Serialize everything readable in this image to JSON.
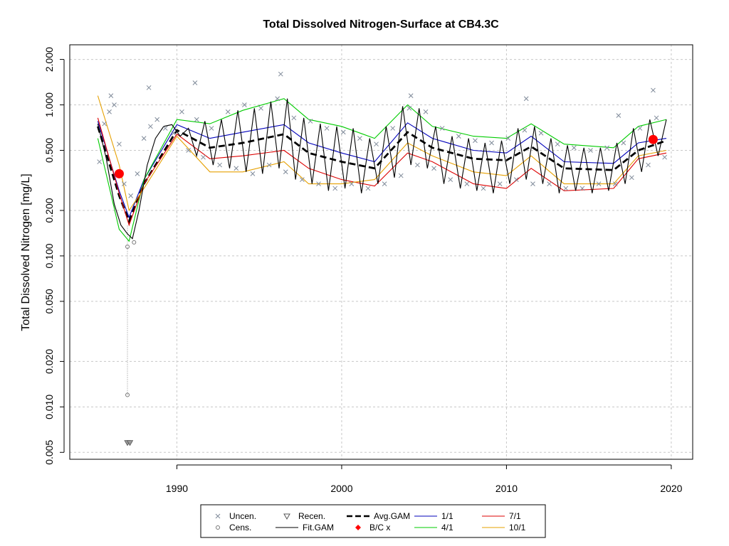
{
  "chart_data": {
    "type": "scatter",
    "title": "Total Dissolved Nitrogen-Surface at CB4.3C",
    "xlabel": "",
    "ylabel": "Total Dissolved Nitrogen [mg/L]",
    "y_scale": "log",
    "xlim": [
      1983.5,
      2021.3
    ],
    "ylim": [
      0.0045,
      2.5
    ],
    "x_ticks": [
      1990,
      2000,
      2010,
      2020
    ],
    "y_ticks": [
      0.005,
      0.01,
      0.02,
      0.05,
      0.1,
      0.2,
      0.5,
      1.0,
      2.0
    ],
    "y_tick_labels": [
      "0.005",
      "0.010",
      "0.020",
      "0.050",
      "0.100",
      "0.200",
      "0.500",
      "1.000",
      "2.000"
    ],
    "grid": true,
    "legend_position": "bottom",
    "legend": [
      {
        "label": "Uncen.",
        "symbol": "x",
        "color": "#7f8a99"
      },
      {
        "label": "Recen.",
        "symbol": "triangle-down",
        "color": "#555555"
      },
      {
        "label": "Avg.GAM",
        "symbol": "dashed-line",
        "color": "#000000"
      },
      {
        "label": "1/1",
        "symbol": "line",
        "color": "#0000bb"
      },
      {
        "label": "7/1",
        "symbol": "line",
        "color": "#dd0000"
      },
      {
        "label": "Cens.",
        "symbol": "circle-open",
        "color": "#777777"
      },
      {
        "label": "Fit.GAM",
        "symbol": "line",
        "color": "#000000"
      },
      {
        "label": "B/C x",
        "symbol": "diamond",
        "color": "#ff0000"
      },
      {
        "label": "4/1",
        "symbol": "line",
        "color": "#00cc00"
      },
      {
        "label": "10/1",
        "symbol": "line",
        "color": "#e6a000"
      }
    ],
    "series": [
      {
        "name": "Avg.GAM",
        "color": "#000000",
        "style": "dashed",
        "x": [
          1985.2,
          1986.5,
          1987.1,
          1988.0,
          1990.0,
          1992.0,
          1994.0,
          1996.5,
          1998.0,
          2000.0,
          2002.0,
          2004.0,
          2005.5,
          2008.0,
          2010.0,
          2011.5,
          2013.5,
          2016.5,
          2018.0,
          2019.7
        ],
        "y": [
          0.72,
          0.25,
          0.17,
          0.3,
          0.68,
          0.52,
          0.56,
          0.64,
          0.48,
          0.42,
          0.38,
          0.66,
          0.52,
          0.44,
          0.43,
          0.53,
          0.38,
          0.37,
          0.5,
          0.58
        ]
      },
      {
        "name": "1/1",
        "color": "#0000bb",
        "style": "solid",
        "x": [
          1985.2,
          1986.5,
          1987.1,
          1988.0,
          1990.0,
          1992.0,
          1994.0,
          1996.5,
          1998.0,
          2000.0,
          2002.0,
          2004.0,
          2005.5,
          2008.0,
          2010.0,
          2011.5,
          2013.5,
          2016.5,
          2018.0,
          2019.7
        ],
        "y": [
          0.78,
          0.27,
          0.18,
          0.32,
          0.74,
          0.6,
          0.66,
          0.74,
          0.56,
          0.48,
          0.42,
          0.76,
          0.6,
          0.5,
          0.48,
          0.62,
          0.42,
          0.41,
          0.56,
          0.6
        ]
      },
      {
        "name": "4/1",
        "color": "#00cc00",
        "style": "solid",
        "x": [
          1985.2,
          1986.5,
          1987.1,
          1988.0,
          1990.0,
          1992.0,
          1994.0,
          1996.5,
          1998.0,
          2000.0,
          2002.0,
          2004.0,
          2005.5,
          2008.0,
          2010.0,
          2011.5,
          2013.5,
          2016.5,
          2018.0,
          2019.7
        ],
        "y": [
          0.6,
          0.15,
          0.125,
          0.32,
          0.8,
          0.75,
          0.92,
          1.1,
          0.8,
          0.72,
          0.6,
          1.0,
          0.72,
          0.62,
          0.6,
          0.75,
          0.55,
          0.52,
          0.72,
          0.8
        ]
      },
      {
        "name": "7/1",
        "color": "#dd0000",
        "style": "solid",
        "x": [
          1985.2,
          1986.5,
          1987.1,
          1988.0,
          1990.0,
          1992.0,
          1994.0,
          1996.5,
          1998.0,
          2000.0,
          2002.0,
          2004.0,
          2005.5,
          2008.0,
          2010.0,
          2011.5,
          2013.5,
          2016.5,
          2018.0,
          2019.7
        ],
        "y": [
          0.82,
          0.26,
          0.16,
          0.3,
          0.64,
          0.44,
          0.46,
          0.5,
          0.38,
          0.32,
          0.29,
          0.48,
          0.42,
          0.3,
          0.28,
          0.38,
          0.27,
          0.28,
          0.44,
          0.48
        ]
      },
      {
        "name": "10/1",
        "color": "#e6a000",
        "style": "solid",
        "x": [
          1985.2,
          1986.5,
          1987.1,
          1988.0,
          1990.0,
          1992.0,
          1994.0,
          1996.5,
          1998.0,
          2000.0,
          2002.0,
          2004.0,
          2005.5,
          2008.0,
          2010.0,
          2011.5,
          2013.5,
          2016.5,
          2018.0,
          2019.7
        ],
        "y": [
          1.15,
          0.4,
          0.2,
          0.28,
          0.62,
          0.36,
          0.36,
          0.42,
          0.3,
          0.3,
          0.32,
          0.56,
          0.46,
          0.36,
          0.34,
          0.46,
          0.3,
          0.3,
          0.46,
          0.5
        ]
      },
      {
        "name": "Fit.GAM",
        "color": "#000000",
        "style": "solid",
        "x": [
          1985.2,
          1985.7,
          1986.2,
          1986.6,
          1987.0,
          1987.3,
          1987.7,
          1988.2,
          1988.7,
          1989.2,
          1989.7,
          1990.2,
          1990.7,
          1991.2,
          1991.7,
          1992.2,
          1992.7,
          1993.2,
          1993.7,
          1994.2,
          1994.7,
          1995.2,
          1995.7,
          1996.2,
          1996.7,
          1997.2,
          1997.7,
          1998.2,
          1998.7,
          1999.2,
          1999.7,
          2000.2,
          2000.7,
          2001.2,
          2001.7,
          2002.2,
          2002.7,
          2003.2,
          2003.7,
          2004.2,
          2004.7,
          2005.2,
          2005.7,
          2006.2,
          2006.7,
          2007.2,
          2007.7,
          2008.2,
          2008.7,
          2009.2,
          2009.7,
          2010.2,
          2010.7,
          2011.2,
          2011.7,
          2012.2,
          2012.7,
          2013.2,
          2013.7,
          2014.2,
          2014.7,
          2015.2,
          2015.7,
          2016.2,
          2016.7,
          2017.2,
          2017.7,
          2018.2,
          2018.7,
          2019.2,
          2019.7
        ],
        "y": [
          0.75,
          0.45,
          0.22,
          0.16,
          0.14,
          0.13,
          0.2,
          0.4,
          0.6,
          0.72,
          0.74,
          0.62,
          0.7,
          0.46,
          0.78,
          0.4,
          0.8,
          0.38,
          0.92,
          0.36,
          0.95,
          0.35,
          1.05,
          0.38,
          1.1,
          0.32,
          0.82,
          0.3,
          0.75,
          0.27,
          0.72,
          0.28,
          0.7,
          0.26,
          0.6,
          0.3,
          0.72,
          0.33,
          0.98,
          0.4,
          0.95,
          0.38,
          0.72,
          0.3,
          0.62,
          0.28,
          0.6,
          0.27,
          0.56,
          0.26,
          0.58,
          0.3,
          0.7,
          0.32,
          0.72,
          0.3,
          0.6,
          0.26,
          0.54,
          0.27,
          0.52,
          0.26,
          0.52,
          0.27,
          0.56,
          0.3,
          0.7,
          0.36,
          0.8,
          0.46,
          0.8
        ]
      }
    ],
    "uncensored_points": {
      "x": [
        1985.3,
        1985.6,
        1985.9,
        1986.2,
        1986.5,
        1986.8,
        1987.2,
        1987.6,
        1988.0,
        1988.4,
        1988.8,
        1989.3,
        1989.8,
        1990.3,
        1990.7,
        1991.2,
        1991.6,
        1992.1,
        1992.6,
        1993.1,
        1993.6,
        1994.1,
        1994.6,
        1995.1,
        1995.6,
        1996.1,
        1996.6,
        1997.1,
        1997.6,
        1998.1,
        1998.6,
        1999.1,
        1999.6,
        2000.1,
        2000.6,
        2001.1,
        2001.6,
        2002.1,
        2002.6,
        2003.1,
        2003.6,
        2004.1,
        2004.6,
        2005.1,
        2005.6,
        2006.1,
        2006.6,
        2007.1,
        2007.6,
        2008.1,
        2008.6,
        2009.1,
        2009.6,
        2010.1,
        2010.6,
        2011.1,
        2011.6,
        2012.1,
        2012.6,
        2013.1,
        2013.6,
        2014.1,
        2014.6,
        2015.1,
        2015.6,
        2016.1,
        2016.6,
        2017.1,
        2017.6,
        2018.1,
        2018.6,
        2019.1,
        2019.6,
        1986.0,
        1988.3,
        1991.1,
        1996.3,
        2004.2,
        2011.2,
        2016.8,
        2018.9
      ],
      "y": [
        0.42,
        0.75,
        0.9,
        1.0,
        0.55,
        0.3,
        0.25,
        0.35,
        0.6,
        0.72,
        0.8,
        0.7,
        0.65,
        0.9,
        0.5,
        0.8,
        0.45,
        0.7,
        0.4,
        0.9,
        0.38,
        1.0,
        0.35,
        0.95,
        0.4,
        1.1,
        0.36,
        0.82,
        0.32,
        0.78,
        0.3,
        0.7,
        0.28,
        0.66,
        0.3,
        0.6,
        0.28,
        0.55,
        0.3,
        0.7,
        0.34,
        0.95,
        0.4,
        0.9,
        0.38,
        0.7,
        0.32,
        0.62,
        0.3,
        0.58,
        0.28,
        0.56,
        0.3,
        0.6,
        0.32,
        0.68,
        0.3,
        0.65,
        0.3,
        0.55,
        0.28,
        0.52,
        0.28,
        0.5,
        0.3,
        0.52,
        0.3,
        0.56,
        0.33,
        0.7,
        0.4,
        0.82,
        0.45,
        1.15,
        1.3,
        1.4,
        1.6,
        1.15,
        1.1,
        0.85,
        1.25
      ]
    },
    "censored_points": {
      "x": [
        1987.0,
        1987.0,
        1987.4
      ],
      "y": [
        0.115,
        0.012,
        0.123
      ]
    },
    "recensored_points": {
      "x": [
        1987.0,
        1987.15
      ],
      "y": [
        0.0058,
        0.0058
      ]
    },
    "bc_points": {
      "x": [
        1986.5,
        2018.9
      ],
      "y": [
        0.35,
        0.59
      ]
    }
  }
}
